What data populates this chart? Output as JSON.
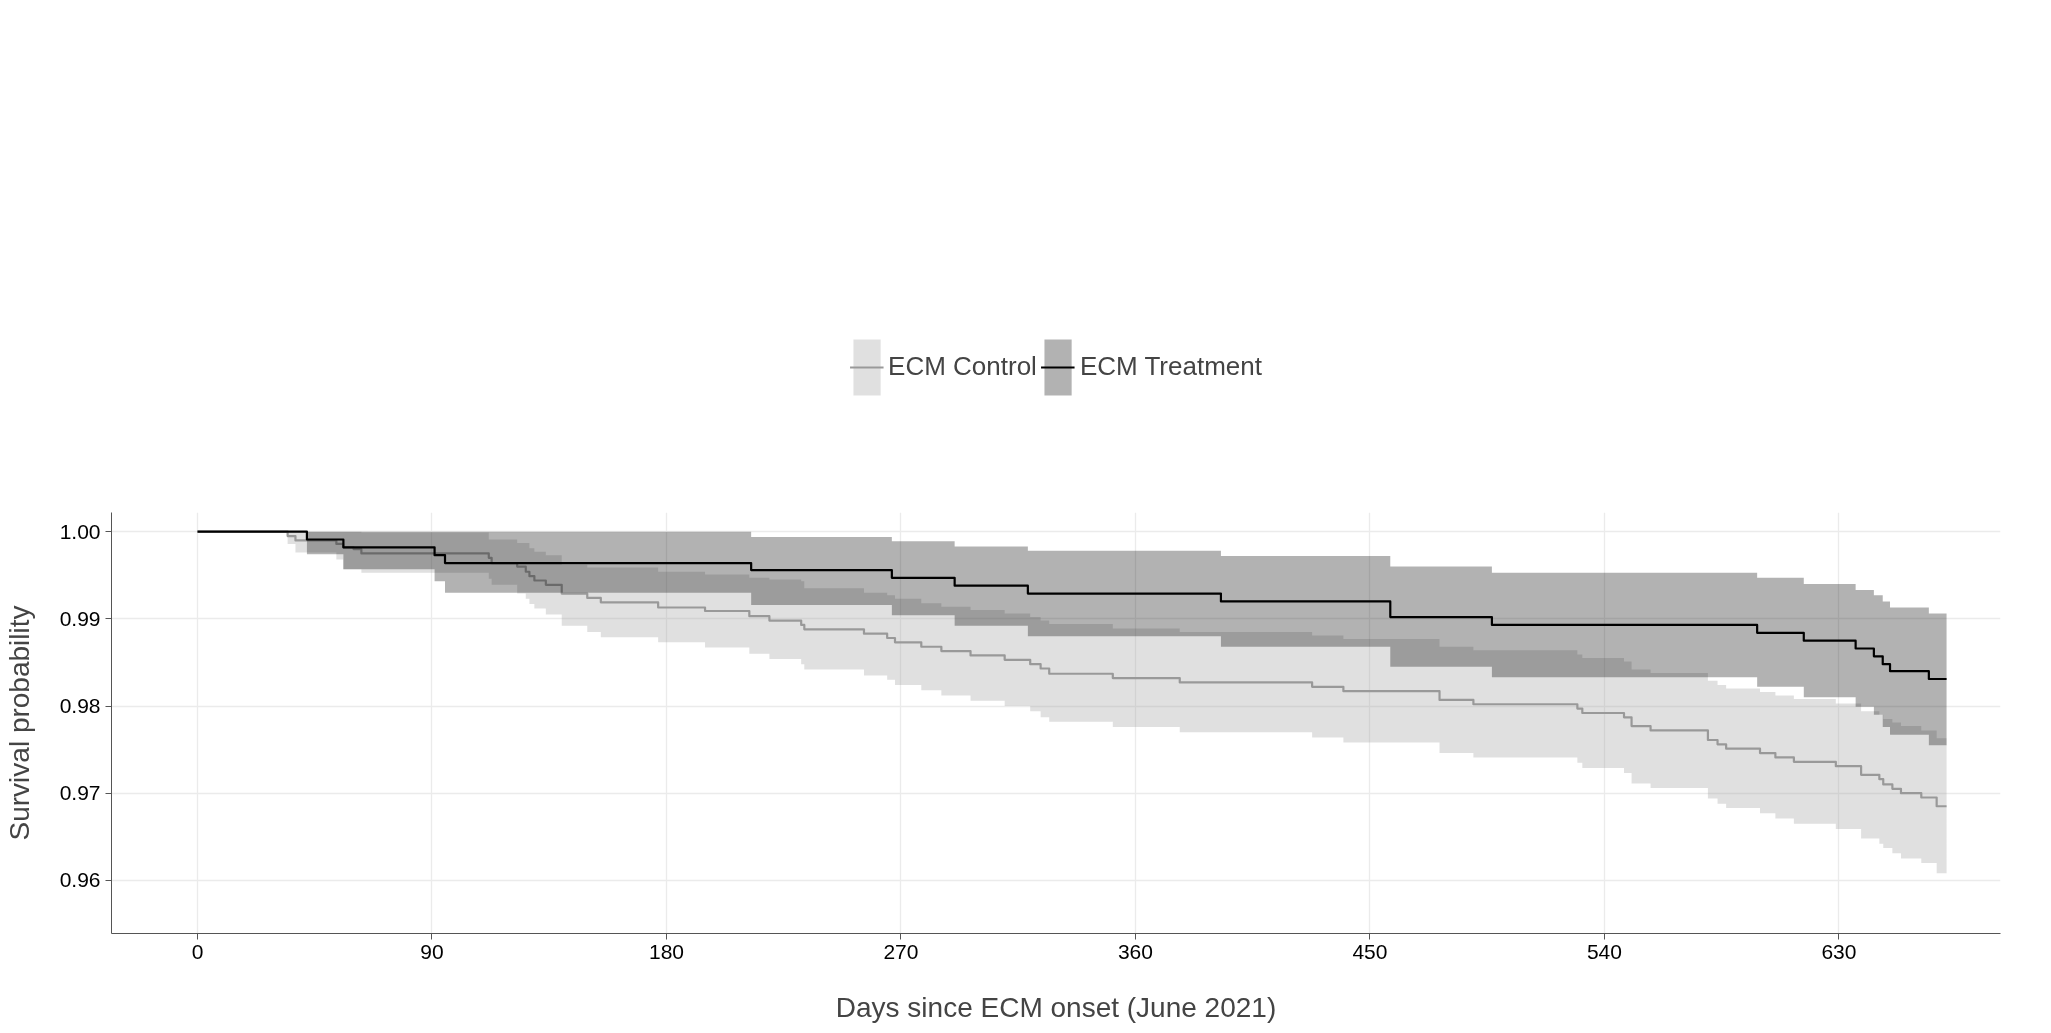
{
  "chart_data": {
    "type": "step",
    "xlabel": "Days since ECM onset (June 2021)",
    "ylabel": "Survival probability",
    "xlim": [
      -33,
      692
    ],
    "ylim": [
      0.9539,
      1.0022
    ],
    "xticks": [
      0,
      90,
      180,
      270,
      360,
      450,
      540,
      630
    ],
    "yticks": [
      0.96,
      0.97,
      0.98,
      0.99,
      {
        "value": 1.0,
        "label": "1.00"
      }
    ],
    "grid": true,
    "legend": "top",
    "series": [
      {
        "name": "ECM Control",
        "color": "#999999",
        "x": [
          0,
          34.6,
          37.6,
          53.3,
          55.9,
          59.9,
          62.9,
          111.8,
          112.9,
          122.7,
          126.0,
          127.4,
          129.3,
          133.7,
          139.8,
          149.6,
          154.8,
          176.8,
          194.8,
          211.8,
          219.5,
          231.7,
          232.9,
          255.8,
          264.7,
          267.7,
          277.8,
          285.5,
          296.7,
          309.8,
          319.6,
          323.6,
          326.9,
          351.3,
          377.0,
          427.8,
          439.8,
          476.7,
          489.7,
          529.6,
          531.5,
          547.5,
          550.4,
          557.7,
          579.7,
          583.4,
          586.7,
          599.7,
          605.6,
          612.7,
          628.8,
          638.5,
          645.5,
          647.0,
          650.5,
          653.8,
          661.6,
          667.5,
          671.3
        ],
        "values": [
          1.0,
          0.9995,
          0.999,
          0.9986,
          0.9982,
          0.998,
          0.9975,
          0.997,
          0.9964,
          0.996,
          0.9954,
          0.9949,
          0.9944,
          0.9939,
          0.9929,
          0.9924,
          0.9919,
          0.9913,
          0.9909,
          0.9903,
          0.9898,
          0.9893,
          0.9888,
          0.9883,
          0.9878,
          0.9873,
          0.9868,
          0.9863,
          0.9858,
          0.9853,
          0.9848,
          0.9843,
          0.9837,
          0.9832,
          0.9827,
          0.9822,
          0.9817,
          0.9807,
          0.9802,
          0.9797,
          0.9792,
          0.9787,
          0.9777,
          0.9772,
          0.9761,
          0.9756,
          0.9751,
          0.9746,
          0.9741,
          0.9736,
          0.9731,
          0.9721,
          0.9716,
          0.971,
          0.9705,
          0.97,
          0.9695,
          0.9685,
          0.9685
        ],
        "upper": [
          1.0,
          1.0,
          1.0,
          1.0,
          1.0,
          1.0,
          0.9999,
          0.9991,
          0.9991,
          0.9987,
          0.9987,
          0.9981,
          0.9977,
          0.9973,
          0.9962,
          0.9959,
          0.9959,
          0.9954,
          0.9951,
          0.9947,
          0.9945,
          0.9943,
          0.9935,
          0.993,
          0.9927,
          0.9923,
          0.9918,
          0.9914,
          0.991,
          0.9906,
          0.9902,
          0.9898,
          0.9894,
          0.9889,
          0.9885,
          0.9881,
          0.9877,
          0.9868,
          0.9864,
          0.9859,
          0.9855,
          0.9851,
          0.9842,
          0.9838,
          0.9829,
          0.9824,
          0.982,
          0.9816,
          0.9812,
          0.9808,
          0.9803,
          0.9794,
          0.979,
          0.9785,
          0.9781,
          0.9777,
          0.9772,
          0.9763,
          0.9763
        ],
        "lower": [
          1.0,
          0.9986,
          0.9976,
          0.9968,
          0.9957,
          0.9957,
          0.9953,
          0.9946,
          0.9939,
          0.9929,
          0.9923,
          0.9917,
          0.9912,
          0.9905,
          0.9892,
          0.9885,
          0.9879,
          0.9873,
          0.9867,
          0.986,
          0.9854,
          0.9848,
          0.9842,
          0.9835,
          0.983,
          0.9824,
          0.9818,
          0.9812,
          0.9806,
          0.98,
          0.9794,
          0.9787,
          0.9782,
          0.9776,
          0.977,
          0.9764,
          0.9758,
          0.9746,
          0.9741,
          0.9735,
          0.9729,
          0.9723,
          0.9711,
          0.9706,
          0.9694,
          0.9688,
          0.9683,
          0.9677,
          0.9671,
          0.9665,
          0.9659,
          0.9648,
          0.9642,
          0.9637,
          0.9631,
          0.9625,
          0.962,
          0.9608,
          0.9608
        ]
      },
      {
        "name": "ECM Treatment",
        "color": "#000000",
        "x": [
          0,
          42,
          56,
          91,
          95,
          212.5,
          266.5,
          290.6,
          318.7,
          392.8,
          457.8,
          496.8,
          598.6,
          616.5,
          636.4,
          643.4,
          646.8,
          649.6,
          664.5,
          671.3
        ],
        "values": [
          1.0,
          0.9991,
          0.9982,
          0.9973,
          0.9964,
          0.9956,
          0.9947,
          0.9938,
          0.9929,
          0.992,
          0.9902,
          0.9893,
          0.9884,
          0.9875,
          0.9866,
          0.9857,
          0.9848,
          0.984,
          0.9831,
          0.9831
        ],
        "upper": [
          1.0,
          1.0,
          1.0,
          1.0,
          1.0,
          0.9994,
          0.9989,
          0.9983,
          0.9978,
          0.9972,
          0.996,
          0.9953,
          0.9947,
          0.994,
          0.9933,
          0.9927,
          0.992,
          0.9913,
          0.9906,
          0.9906
        ],
        "lower": [
          1.0,
          0.9974,
          0.9957,
          0.9943,
          0.993,
          0.9916,
          0.9904,
          0.9892,
          0.988,
          0.9868,
          0.9845,
          0.9833,
          0.9822,
          0.981,
          0.9799,
          0.979,
          0.9776,
          0.9767,
          0.9755,
          0.9755
        ]
      }
    ]
  }
}
